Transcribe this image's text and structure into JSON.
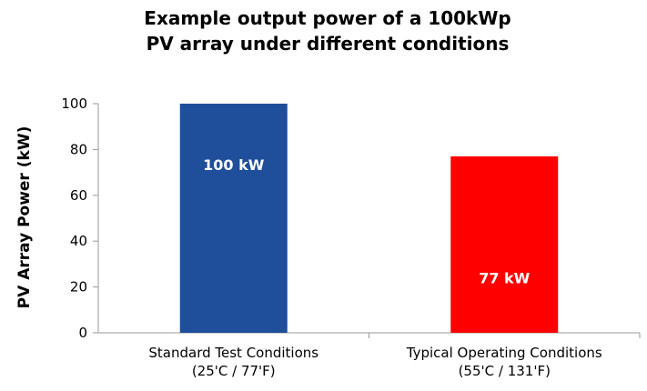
{
  "chart_data": {
    "type": "bar",
    "title_lines": [
      "Example output power of a 100kWp",
      "PV array under different conditions"
    ],
    "xlabel": "",
    "ylabel": "PV Array Power (kW)",
    "ylim": [
      0,
      100
    ],
    "yticks": [
      0,
      20,
      40,
      60,
      80,
      100
    ],
    "grid": false,
    "categories": [
      [
        "Standard Test Conditions",
        "(25'C / 77'F)"
      ],
      [
        "Typical Operating Conditions",
        "(55'C / 131'F)"
      ]
    ],
    "values": [
      100,
      77
    ],
    "data_labels": [
      "100 kW",
      "77 kW"
    ],
    "colors": [
      "#1F4E9A",
      "#FF0000"
    ],
    "data_label_color": "#ffffff",
    "axis_color": "#999999"
  }
}
